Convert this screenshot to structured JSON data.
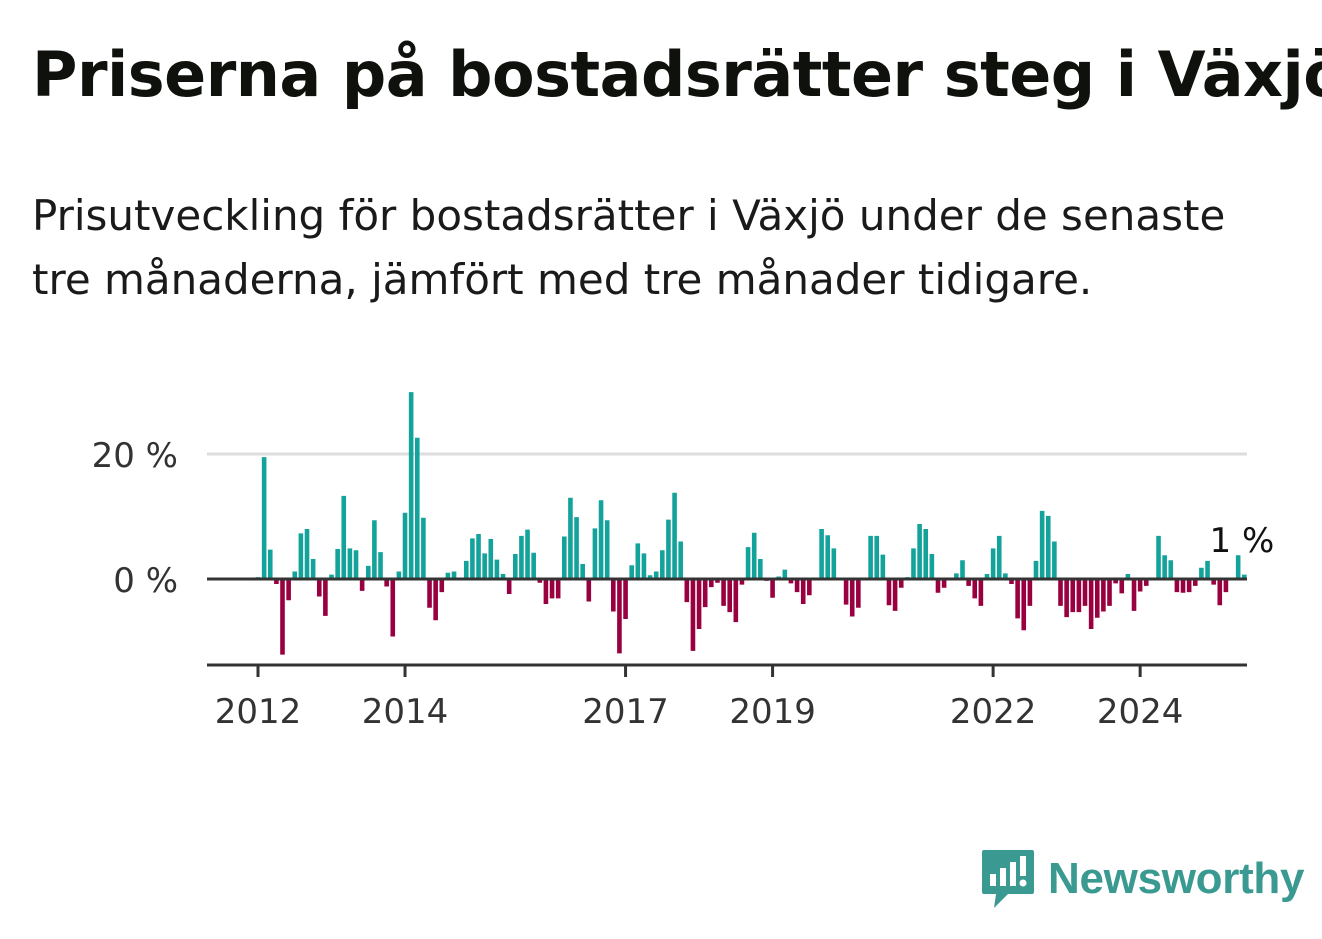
{
  "title": "Priserna på bostadsrätter steg i Växjö",
  "subtitle": "Prisutveckling för bostadsrätter i Växjö under de senaste tre månaderna, jämfört med tre månader tidigare.",
  "logo": {
    "text": "Newsworthy",
    "icon": "newsworthy-chart-icon"
  },
  "colors": {
    "positive": "#13a39b",
    "negative": "#99003f",
    "axis": "#333333",
    "grid": "#dddddd",
    "logo": "#3a9a92"
  },
  "chart_data": {
    "type": "bar",
    "title": "",
    "xlabel": "",
    "ylabel": "",
    "ylim": [
      -14,
      30
    ],
    "y_ticks": [
      {
        "value": 0,
        "label": "0 %"
      },
      {
        "value": 20,
        "label": "20 %"
      }
    ],
    "x_ticks": [
      "2012",
      "2014",
      "2017",
      "2019",
      "2022",
      "2024"
    ],
    "x_tick_months": [
      "2012-01",
      "2014-01",
      "2017-01",
      "2019-01",
      "2022-01",
      "2024-01"
    ],
    "start_month": "2012-01",
    "last_label": "1 %",
    "grid": true,
    "values": [
      0.3,
      19.5,
      4.7,
      -0.8,
      -12.1,
      -3.4,
      1.2,
      7.3,
      8.0,
      3.2,
      -2.8,
      -5.9,
      0.7,
      4.8,
      13.3,
      4.9,
      4.6,
      -1.9,
      2.1,
      9.4,
      4.3,
      -1.2,
      -9.2,
      1.2,
      10.6,
      29.9,
      22.6,
      9.8,
      -4.6,
      -6.6,
      -2.1,
      1.0,
      1.2,
      0.2,
      2.9,
      6.5,
      7.2,
      4.1,
      6.4,
      3.1,
      0.8,
      -2.4,
      4.0,
      6.9,
      7.9,
      4.2,
      -0.6,
      -4.0,
      -3.1,
      -3.1,
      6.8,
      13.0,
      9.9,
      2.4,
      -3.6,
      8.1,
      12.6,
      9.4,
      -5.2,
      -11.9,
      -6.4,
      2.2,
      5.7,
      4.1,
      0.6,
      1.2,
      4.6,
      9.5,
      13.8,
      6.0,
      -3.7,
      -11.5,
      -8.0,
      -4.5,
      -1.3,
      -0.6,
      -4.3,
      -5.3,
      -6.9,
      -0.9,
      5.1,
      7.4,
      3.2,
      -0.3,
      -3.0,
      0.4,
      1.5,
      -0.7,
      -2.1,
      -4.0,
      -2.6,
      0.2,
      8.0,
      7.0,
      4.9,
      -0.2,
      -4.1,
      -6.0,
      -4.6,
      0.2,
      6.9,
      6.9,
      3.9,
      -4.2,
      -5.1,
      -1.4,
      0.3,
      4.9,
      8.8,
      8.0,
      4.0,
      -2.2,
      -1.4,
      -0.2,
      0.9,
      3.0,
      -1.1,
      -3.1,
      -4.3,
      0.8,
      4.9,
      6.9,
      0.9,
      -0.8,
      -6.3,
      -8.2,
      -4.3,
      2.9,
      10.9,
      10.1,
      6.0,
      -4.3,
      -6.1,
      -5.3,
      -5.3,
      -4.3,
      -8.0,
      -6.2,
      -5.2,
      -4.3,
      -0.7,
      -2.3,
      0.8,
      -5.1,
      -2.0,
      -1.1,
      0.0,
      6.9,
      3.8,
      3.0,
      -2.1,
      -2.2,
      -2.1,
      -1.1,
      1.8,
      2.9,
      -0.9,
      -4.2,
      -2.1,
      0.1,
      3.8,
      0.7
    ]
  }
}
